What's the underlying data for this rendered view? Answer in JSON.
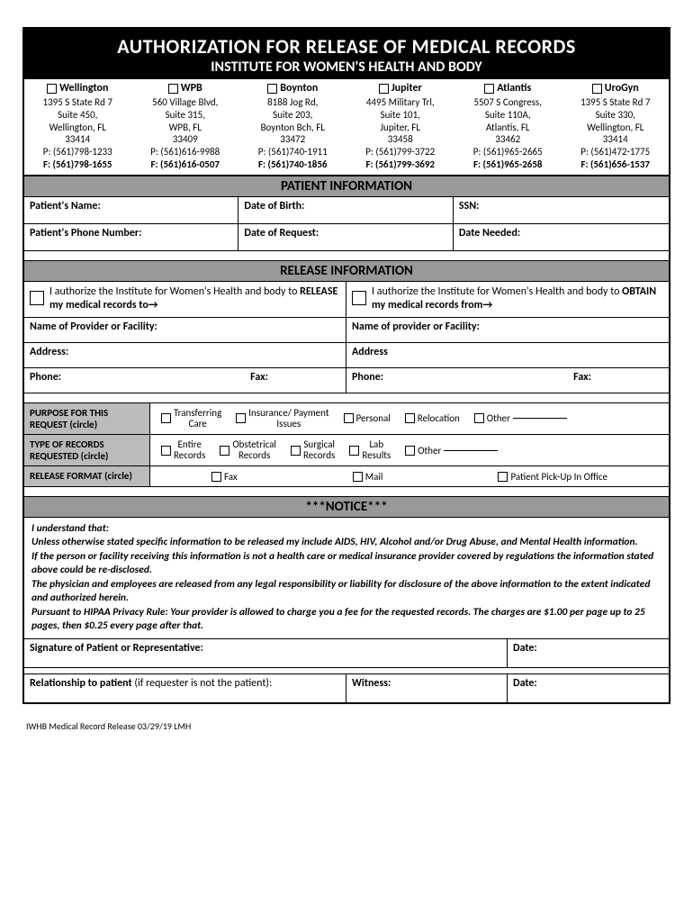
{
  "header": {
    "title": "AUTHORIZATION FOR RELEASE OF MEDICAL RECORDS",
    "subtitle": "INSTITUTE FOR WOMEN'S HEALTH AND BODY"
  },
  "locations": [
    {
      "name": "Wellington",
      "addr1": "1395 S State Rd 7",
      "addr2": "Suite 450,",
      "addr3": "Wellington, FL",
      "zip": "33414",
      "phone": "P: (561)798-1233",
      "fax": "F: (561)798-1655"
    },
    {
      "name": "WPB",
      "addr1": "560 Village Blvd,",
      "addr2": "Suite 315,",
      "addr3": "WPB, FL",
      "zip": "33409",
      "phone": "P: (561)616-9988",
      "fax": "F: (561)616-0507"
    },
    {
      "name": "Boynton",
      "addr1": "8188 Jog Rd,",
      "addr2": "Suite 203,",
      "addr3": "Boynton Bch, FL",
      "zip": "33472",
      "phone": "P: (561)740-1911",
      "fax": "F: (561)740-1856"
    },
    {
      "name": "Jupiter",
      "addr1": "4495 Military Trl,",
      "addr2": "Suite 101,",
      "addr3": "Jupiter, FL",
      "zip": "33458",
      "phone": "P: (561)799-3722",
      "fax": "F: (561)799-3692"
    },
    {
      "name": "Atlantis",
      "addr1": "5507 S Congress,",
      "addr2": "Suite 110A,",
      "addr3": "Atlantis, FL",
      "zip": "33462",
      "phone": "P: (561)965-2665",
      "fax": "F: (561)965-2658"
    },
    {
      "name": "UroGyn",
      "addr1": "1395 S State Rd 7",
      "addr2": "Suite 330,",
      "addr3": "Wellington, FL",
      "zip": "33414",
      "phone": "P: (561)472-1775",
      "fax": "F: (561)656-1537"
    }
  ],
  "sections": {
    "patient_info": "PATIENT INFORMATION",
    "release_info": "RELEASE INFORMATION",
    "notice": "***NOTICE***"
  },
  "patient": {
    "name_label": "Patient's Name:",
    "dob_label": "Date of Birth:",
    "ssn_label": "SSN:",
    "phone_label": "Patient's Phone Number:",
    "dor_label": "Date of Request:",
    "dn_label": "Date Needed:"
  },
  "auth": {
    "release": "I authorize the Institute for Women's Health and body to ",
    "release_b": "RELEASE my medical records to→",
    "obtain": "I authorize the Institute for Women's Health and body to ",
    "obtain_b": "OBTAIN my medical records from→"
  },
  "provider": {
    "name1": "Name of Provider or Facility:",
    "name2": "Name of provider or Facility:",
    "addr1": "Address:",
    "addr2": "Address",
    "phone": "Phone:",
    "fax": "Fax:"
  },
  "purpose": {
    "label": "PURPOSE FOR THIS REQUEST (circle)",
    "opts": [
      "Transferring Care",
      "Insurance/ Payment Issues",
      "Personal",
      "Relocation",
      "Other"
    ]
  },
  "records": {
    "label": "TYPE OF RECORDS REQUESTED (circle)",
    "opts": [
      "Entire Records",
      "Obstetrical Records",
      "Surgical Records",
      "Lab Results",
      "Other"
    ]
  },
  "format": {
    "label": "RELEASE FORMAT (circle)",
    "opts": [
      "Fax",
      "Mail",
      "Patient Pick-Up In Office"
    ]
  },
  "notice_body": {
    "intro": "I understand that:",
    "p1": "Unless otherwise stated specific information to be released my include AIDS, HIV, Alcohol and/or Drug Abuse, and Mental Health information.",
    "p2": "If the person or facility receiving this information is not a health care or medical insurance provider covered by regulations the information stated above could be re-disclosed.",
    "p3": "The physician and employees are released from any legal responsibility or liability for disclosure of the above information to the extent indicated and authorized herein.",
    "p4": "Pursuant to HIPAA Privacy Rule: Your provider is allowed to charge you a fee for the requested records.  The charges are $1.00 per page up to 25 pages, then $0.25 every page after that."
  },
  "sig": {
    "sig_label": "Signature of Patient or Representative:",
    "date_label": "Date:",
    "rel_label": "Relationship to patient",
    "rel_note": " (if requester is not the patient):",
    "witness": "Witness:",
    "date2": "Date:"
  },
  "footer": "IWHB Medical Record Release  03/29/19 LMH"
}
